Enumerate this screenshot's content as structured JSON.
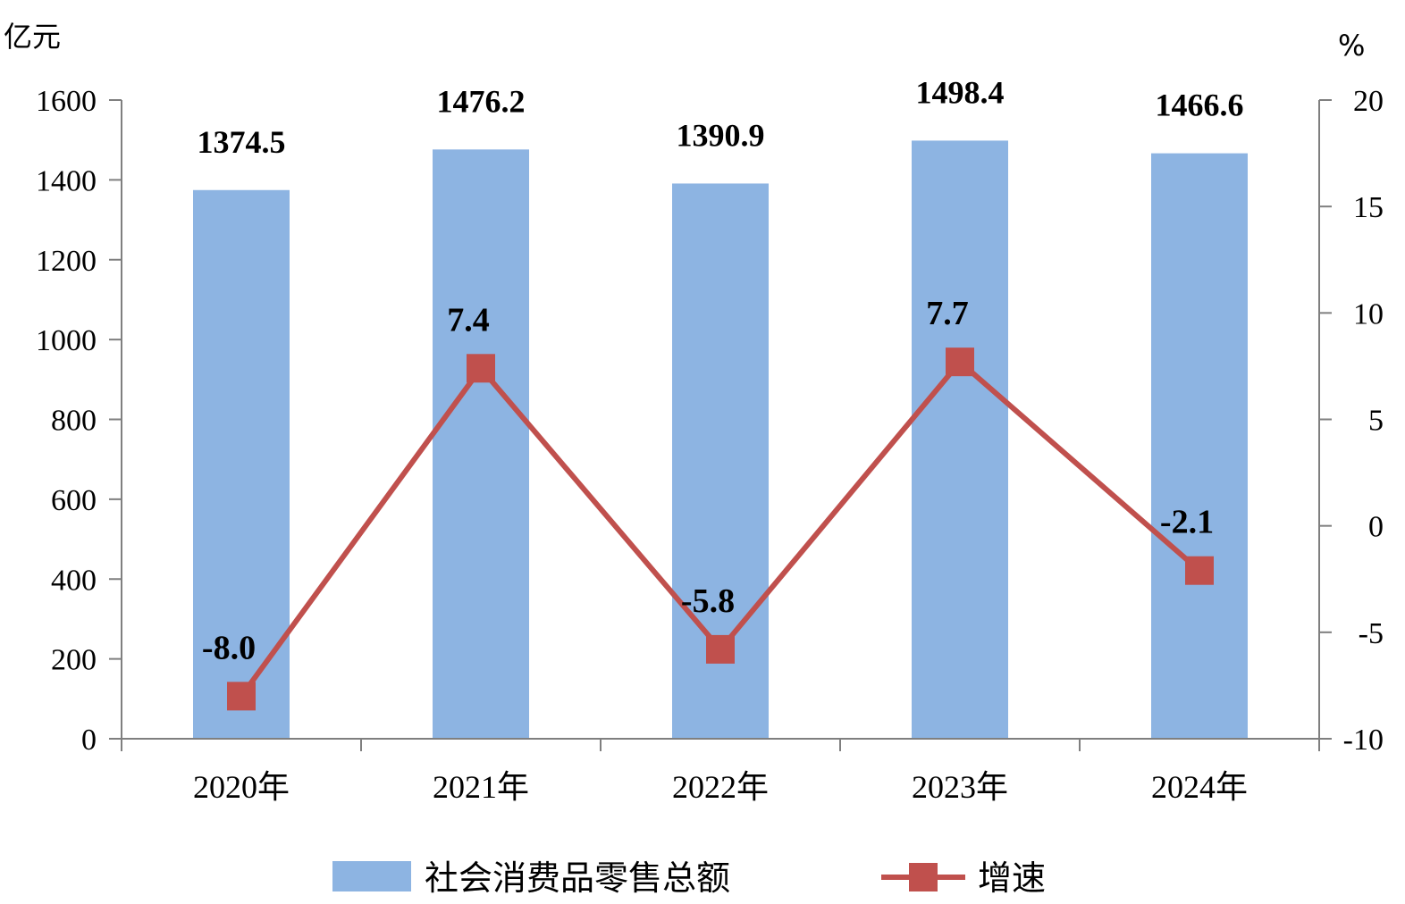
{
  "chart_data": {
    "type": "bar",
    "categories": [
      "2020年",
      "2021年",
      "2022年",
      "2023年",
      "2024年"
    ],
    "left_unit": "亿元",
    "right_unit": "%",
    "y_left": {
      "min": 0,
      "max": 1600,
      "ticks": [
        "0",
        "200",
        "400",
        "600",
        "800",
        "1000",
        "1200",
        "1400",
        "1600"
      ]
    },
    "y_right": {
      "min": -10,
      "max": 20,
      "ticks": [
        "-10",
        "-5",
        "0",
        "5",
        "10",
        "15",
        "20"
      ]
    },
    "series": [
      {
        "name": "社会消费品零售总额",
        "type": "bar",
        "axis": "left",
        "color": "#8db4e2",
        "values": [
          1374.5,
          1476.2,
          1390.9,
          1498.4,
          1466.6
        ],
        "labels": [
          "1374.5",
          "1476.2",
          "1390.9",
          "1498.4",
          "1466.6"
        ]
      },
      {
        "name": "增速",
        "type": "line",
        "axis": "right",
        "color": "#c0504d",
        "values": [
          -8.0,
          7.4,
          -5.8,
          7.7,
          -2.1
        ],
        "labels": [
          "-8.0",
          "7.4",
          "-5.8",
          "7.7",
          "-2.1"
        ]
      }
    ],
    "legend": "bottom",
    "grid": false
  }
}
